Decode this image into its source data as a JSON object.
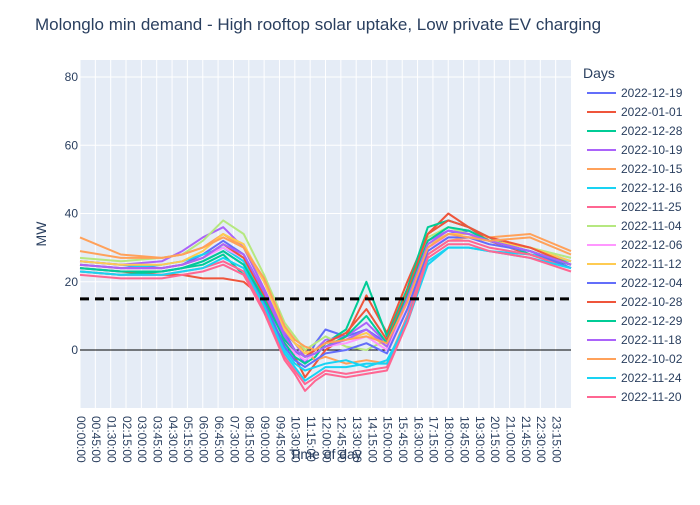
{
  "chart_data": {
    "type": "line",
    "title": "Molonglo min demand - High rooftop solar uptake, Low private EV charging",
    "xlabel": "Time of day",
    "ylabel": "MW",
    "ylim": [
      -17,
      85
    ],
    "yticks": [
      0,
      20,
      40,
      60,
      80
    ],
    "x_tick_labels": [
      "00:00:00",
      "00:45:00",
      "01:30:00",
      "02:15:00",
      "03:00:00",
      "03:45:00",
      "04:30:00",
      "05:15:00",
      "06:00:00",
      "06:45:00",
      "07:30:00",
      "08:15:00",
      "09:00:00",
      "09:45:00",
      "10:30:00",
      "11:15:00",
      "12:00:00",
      "12:45:00",
      "13:30:00",
      "14:15:00",
      "15:00:00",
      "15:45:00",
      "16:30:00",
      "17:15:00",
      "18:00:00",
      "18:45:00",
      "19:30:00",
      "20:15:00",
      "21:00:00",
      "21:45:00",
      "22:30:00",
      "23:15:00"
    ],
    "x_hours": [
      0,
      2,
      4,
      5,
      6,
      7,
      8,
      9,
      10,
      10.5,
      11,
      11.5,
      12,
      13,
      14,
      15,
      16,
      17,
      18,
      19,
      20,
      22,
      24
    ],
    "threshold": {
      "value": 15
    },
    "legend": {
      "title": "Days",
      "placement": "right"
    },
    "grid": true,
    "series": [
      {
        "name": "2022-12-19",
        "color": "#636efa",
        "values": [
          26,
          25,
          24,
          25,
          28,
          32,
          28,
          17,
          5,
          0,
          -4,
          2,
          6,
          4,
          6,
          2,
          16,
          30,
          34,
          35,
          32,
          28,
          25
        ]
      },
      {
        "name": "2022-01-01",
        "color": "#EF553B",
        "values": [
          24,
          23,
          22,
          22,
          21,
          21,
          20,
          15,
          3,
          -2,
          -8,
          -4,
          0,
          4,
          16,
          5,
          20,
          34,
          40,
          36,
          32,
          28,
          24
        ]
      },
      {
        "name": "2022-12-28",
        "color": "#00cc96",
        "values": [
          23,
          22,
          23,
          24,
          25,
          28,
          22,
          12,
          2,
          -2,
          -4,
          -2,
          2,
          6,
          20,
          4,
          18,
          36,
          38,
          36,
          33,
          28,
          25
        ]
      },
      {
        "name": "2022-10-19",
        "color": "#ab63fa",
        "values": [
          26,
          25,
          26,
          29,
          33,
          36,
          30,
          18,
          5,
          2,
          -2,
          0,
          3,
          4,
          8,
          2,
          16,
          32,
          35,
          34,
          32,
          30,
          26
        ]
      },
      {
        "name": "2022-10-15",
        "color": "#FFA15A",
        "values": [
          33,
          28,
          27,
          28,
          30,
          34,
          30,
          20,
          6,
          2,
          0,
          -3,
          -2,
          -4,
          -3,
          -4,
          10,
          28,
          32,
          33,
          33,
          34,
          29
        ]
      },
      {
        "name": "2022-12-16",
        "color": "#19d3f3",
        "values": [
          25,
          24,
          25,
          26,
          28,
          30,
          26,
          15,
          0,
          -4,
          -6,
          -5,
          -4,
          -3,
          -5,
          -3,
          8,
          25,
          30,
          30,
          29,
          28,
          26
        ]
      },
      {
        "name": "2022-11-25",
        "color": "#FF6692",
        "values": [
          23,
          22,
          22,
          23,
          24,
          26,
          23,
          12,
          -2,
          -6,
          -10,
          -8,
          -6,
          -7,
          -6,
          -5,
          10,
          28,
          32,
          32,
          30,
          28,
          24
        ]
      },
      {
        "name": "2022-11-04",
        "color": "#B6E880",
        "values": [
          27,
          26,
          27,
          28,
          32,
          38,
          34,
          22,
          8,
          4,
          0,
          2,
          4,
          1,
          0,
          3,
          16,
          33,
          36,
          34,
          32,
          30,
          27
        ]
      },
      {
        "name": "2022-12-06",
        "color": "#FF97FF",
        "values": [
          25,
          24,
          24,
          25,
          27,
          30,
          27,
          16,
          3,
          -1,
          -3,
          -1,
          1,
          2,
          4,
          0,
          14,
          30,
          33,
          33,
          31,
          29,
          25
        ]
      },
      {
        "name": "2022-11-12",
        "color": "#FECB52",
        "values": [
          26,
          25,
          25,
          26,
          29,
          34,
          31,
          20,
          6,
          2,
          -1,
          0,
          2,
          3,
          5,
          1,
          15,
          31,
          34,
          34,
          32,
          30,
          26
        ]
      },
      {
        "name": "2022-12-04",
        "color": "#636efa",
        "values": [
          24,
          23,
          23,
          24,
          26,
          29,
          25,
          14,
          1,
          -3,
          -5,
          -3,
          -1,
          0,
          2,
          -1,
          12,
          29,
          33,
          33,
          31,
          29,
          24
        ]
      },
      {
        "name": "2022-10-28",
        "color": "#EF553B",
        "values": [
          25,
          24,
          24,
          25,
          27,
          31,
          27,
          16,
          3,
          0,
          -2,
          0,
          2,
          5,
          12,
          3,
          17,
          34,
          38,
          36,
          33,
          30,
          25
        ]
      },
      {
        "name": "2022-12-29",
        "color": "#00cc96",
        "values": [
          24,
          23,
          23,
          24,
          26,
          29,
          25,
          15,
          3,
          0,
          -2,
          -1,
          1,
          4,
          10,
          2,
          16,
          32,
          36,
          35,
          32,
          29,
          25
        ]
      },
      {
        "name": "2022-11-18",
        "color": "#ab63fa",
        "values": [
          25,
          24,
          24,
          25,
          27,
          31,
          28,
          17,
          4,
          0,
          -2,
          -1,
          1,
          3,
          6,
          1,
          15,
          31,
          35,
          34,
          32,
          29,
          25
        ]
      },
      {
        "name": "2022-10-02",
        "color": "#FFA15A",
        "values": [
          29,
          27,
          27,
          28,
          30,
          33,
          30,
          21,
          7,
          3,
          1,
          0,
          2,
          3,
          4,
          2,
          14,
          30,
          34,
          33,
          32,
          33,
          28
        ]
      },
      {
        "name": "2022-11-24",
        "color": "#19d3f3",
        "values": [
          23,
          22,
          22,
          23,
          24,
          27,
          24,
          13,
          -1,
          -5,
          -9,
          -7,
          -5,
          -5,
          -4,
          -4,
          9,
          26,
          30,
          30,
          29,
          27,
          24
        ]
      },
      {
        "name": "2022-11-20",
        "color": "#FF6692",
        "values": [
          22,
          21,
          21,
          22,
          23,
          25,
          22,
          11,
          -3,
          -7,
          -12,
          -9,
          -7,
          -8,
          -7,
          -6,
          8,
          27,
          31,
          31,
          29,
          27,
          23
        ]
      }
    ]
  }
}
